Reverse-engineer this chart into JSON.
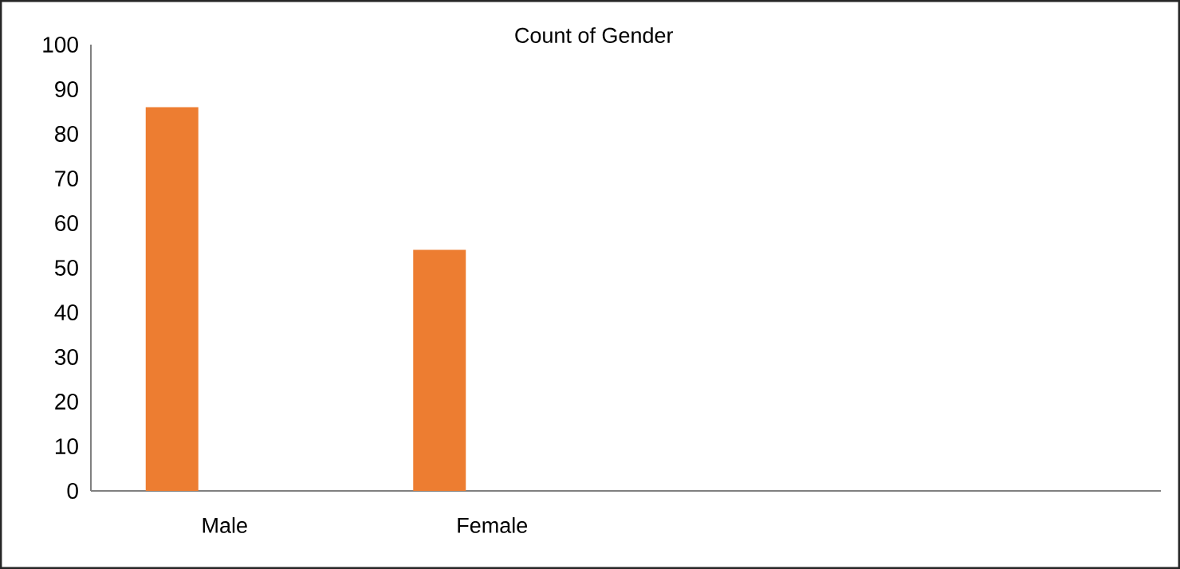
{
  "chart_data": {
    "type": "bar",
    "title": "Count of Gender",
    "categories": [
      "Male",
      "Female",
      null,
      null
    ],
    "values": [
      86,
      54,
      null,
      null
    ],
    "color": "#ed7d31",
    "ylim": [
      0,
      100
    ],
    "yticks": [
      0,
      10,
      20,
      30,
      40,
      50,
      60,
      70,
      80,
      90,
      100
    ]
  }
}
